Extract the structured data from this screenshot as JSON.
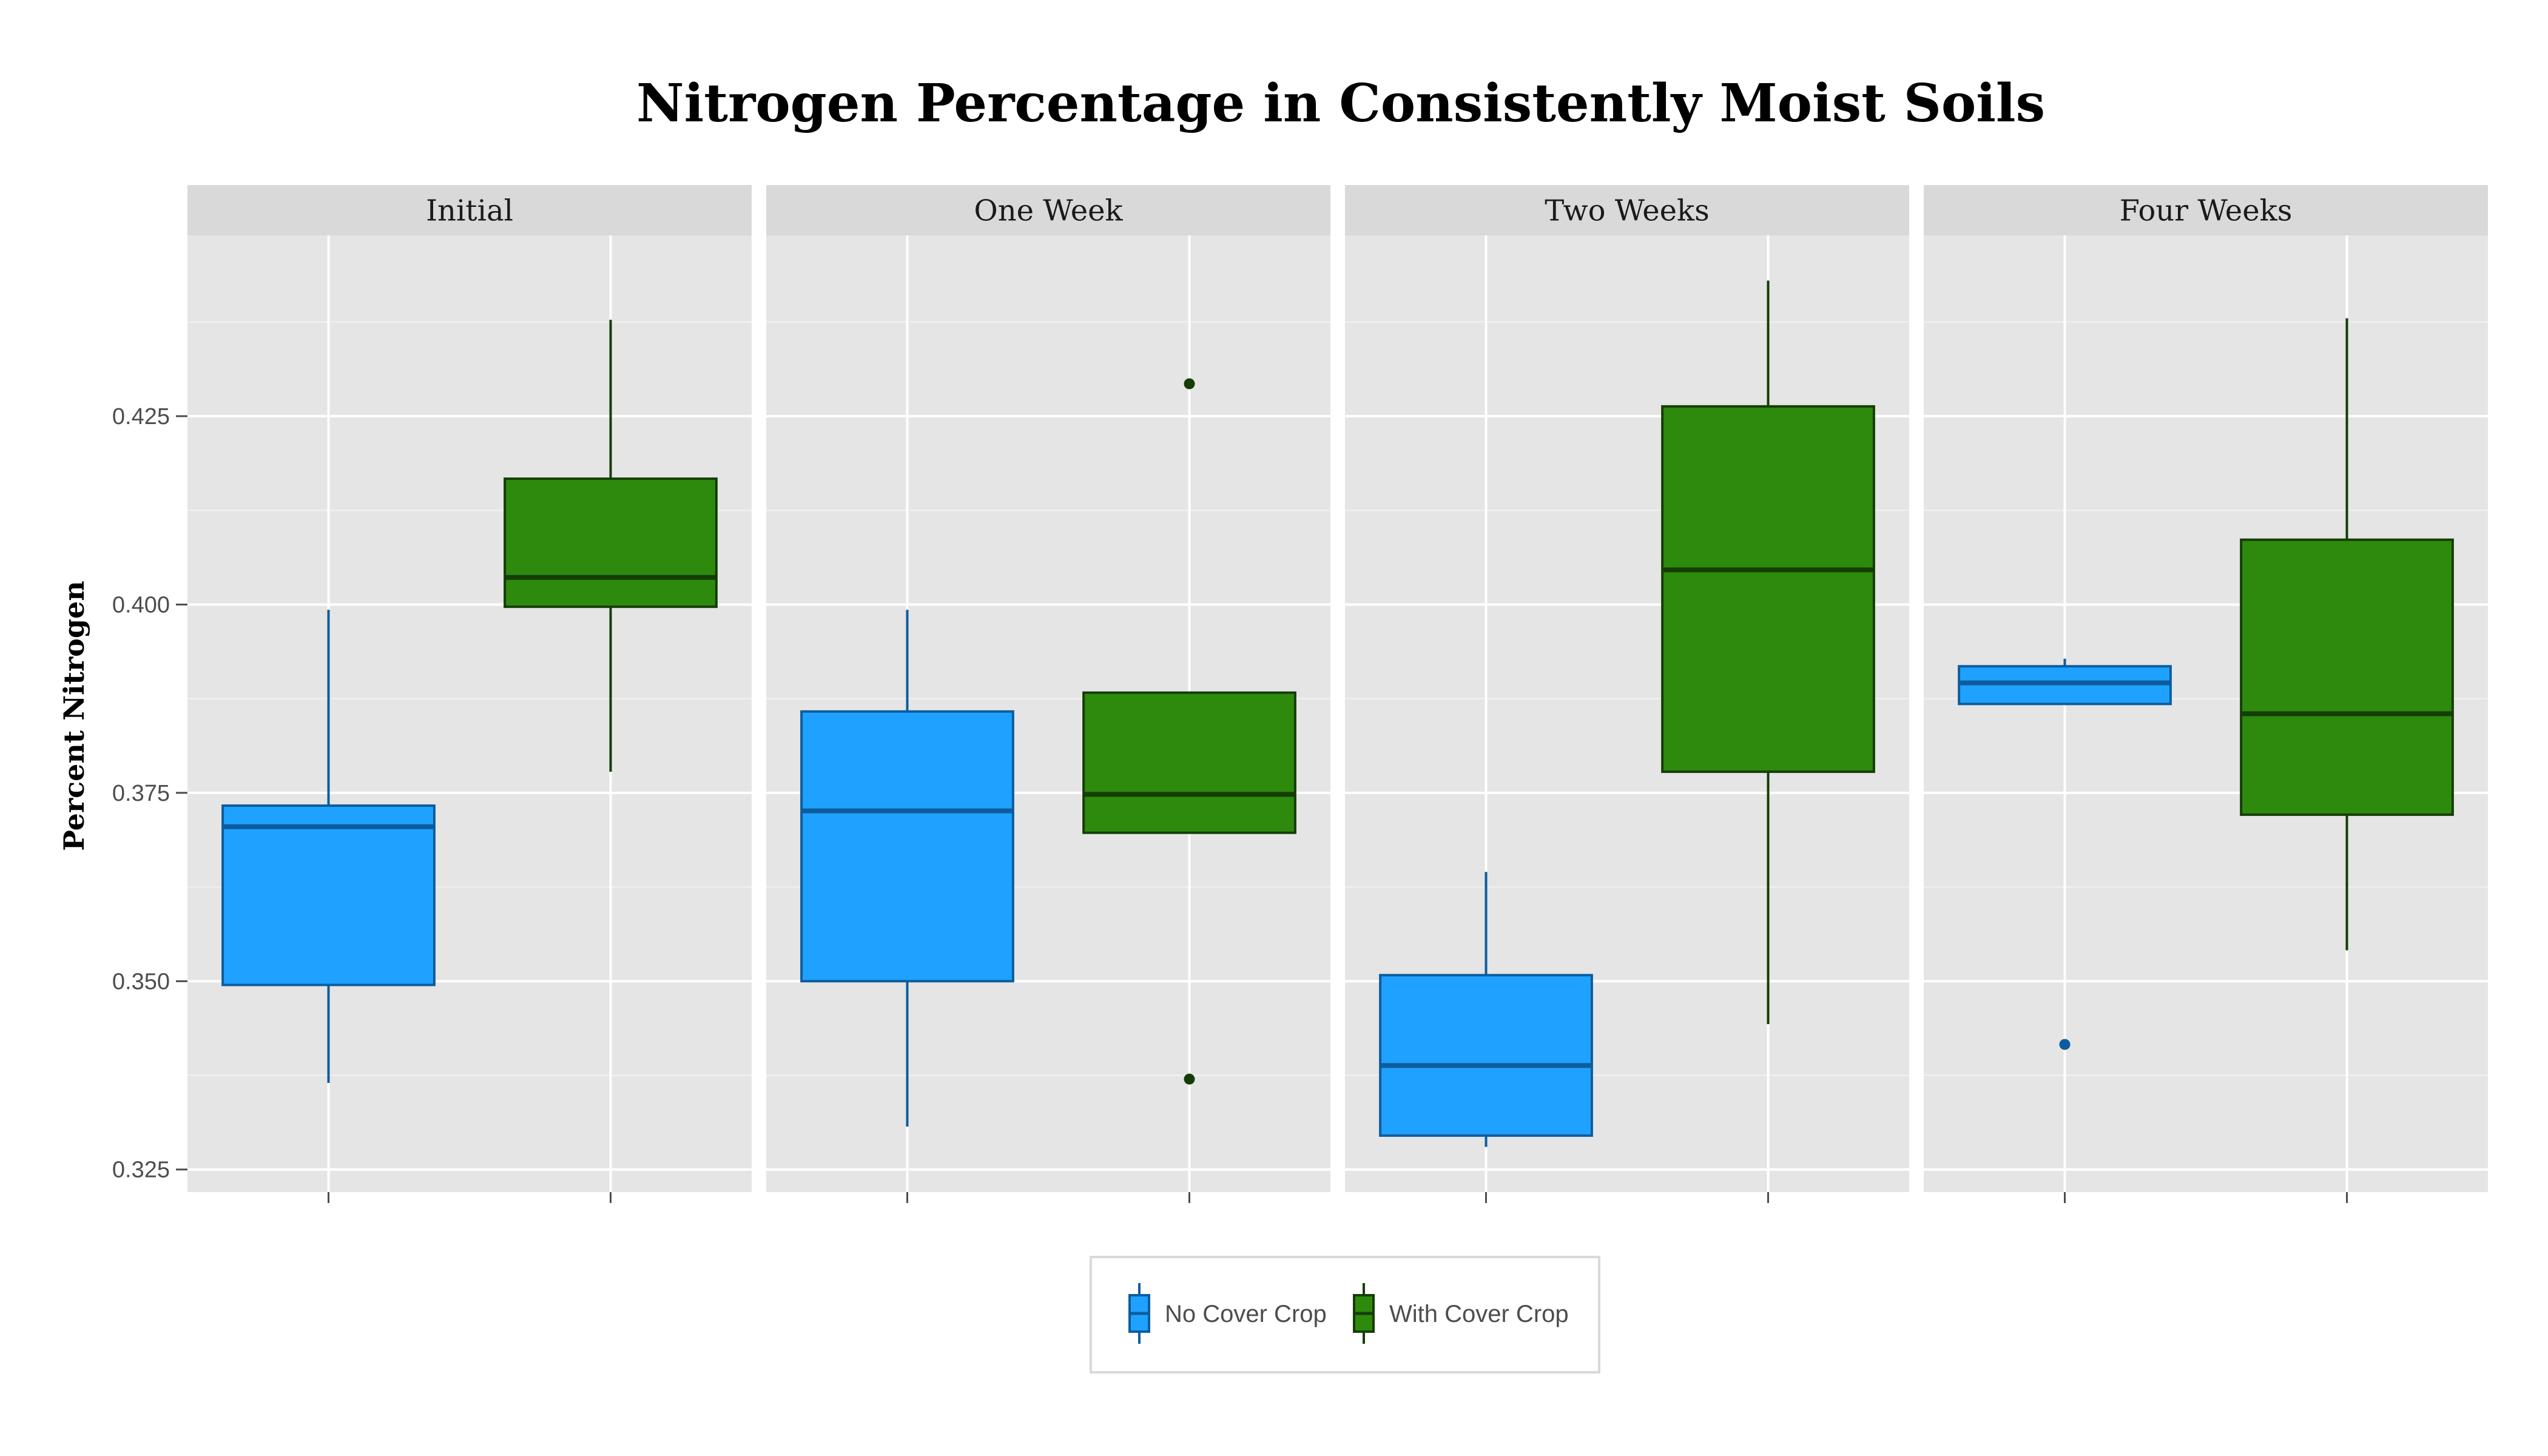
{
  "chart_data": {
    "type": "box",
    "title": "Nitrogen Percentage in Consistently Moist Soils",
    "ylabel": "Percent Nitrogen",
    "xlabel": "",
    "ylim": [
      0.322,
      0.449
    ],
    "yticks": [
      0.325,
      0.35,
      0.375,
      0.4,
      0.425
    ],
    "ytick_labels": [
      "0.325",
      "0.350",
      "0.375",
      "0.400",
      "0.425"
    ],
    "grid": true,
    "legend_position": "bottom",
    "facets": [
      "Initial",
      "One Week",
      "Two Weeks",
      "Four Weeks"
    ],
    "series": [
      {
        "name": "No Cover Crop",
        "fill": "#1FA2FF",
        "stroke": "#0D5C9E",
        "boxes": [
          {
            "facet": "Initial",
            "whisker_low": 0.3365,
            "q1": 0.3495,
            "median": 0.3705,
            "q3": 0.3733,
            "whisker_high": 0.3993,
            "outliers": []
          },
          {
            "facet": "One Week",
            "whisker_low": 0.3307,
            "q1": 0.35,
            "median": 0.3726,
            "q3": 0.3858,
            "whisker_high": 0.3993,
            "outliers": []
          },
          {
            "facet": "Two Weeks",
            "whisker_low": 0.328,
            "q1": 0.3295,
            "median": 0.3388,
            "q3": 0.3508,
            "whisker_high": 0.3645,
            "outliers": []
          },
          {
            "facet": "Four Weeks",
            "whisker_low": 0.3868,
            "q1": 0.3868,
            "median": 0.3896,
            "q3": 0.3918,
            "whisker_high": 0.3928,
            "outliers": [
              0.3416
            ]
          }
        ]
      },
      {
        "name": "With Cover Crop",
        "fill": "#2D8A0D",
        "stroke": "#153D06",
        "boxes": [
          {
            "facet": "Initial",
            "whisker_low": 0.3778,
            "q1": 0.3997,
            "median": 0.4036,
            "q3": 0.4167,
            "whisker_high": 0.4378,
            "outliers": []
          },
          {
            "facet": "One Week",
            "whisker_low": 0.3697,
            "q1": 0.3697,
            "median": 0.3748,
            "q3": 0.3883,
            "whisker_high": 0.3883,
            "outliers": [
              0.4293,
              0.337
            ]
          },
          {
            "facet": "Two Weeks",
            "whisker_low": 0.3443,
            "q1": 0.3778,
            "median": 0.4046,
            "q3": 0.4263,
            "whisker_high": 0.443,
            "outliers": []
          },
          {
            "facet": "Four Weeks",
            "whisker_low": 0.3541,
            "q1": 0.3721,
            "median": 0.3855,
            "q3": 0.4086,
            "whisker_high": 0.438,
            "outliers": []
          }
        ]
      }
    ]
  }
}
